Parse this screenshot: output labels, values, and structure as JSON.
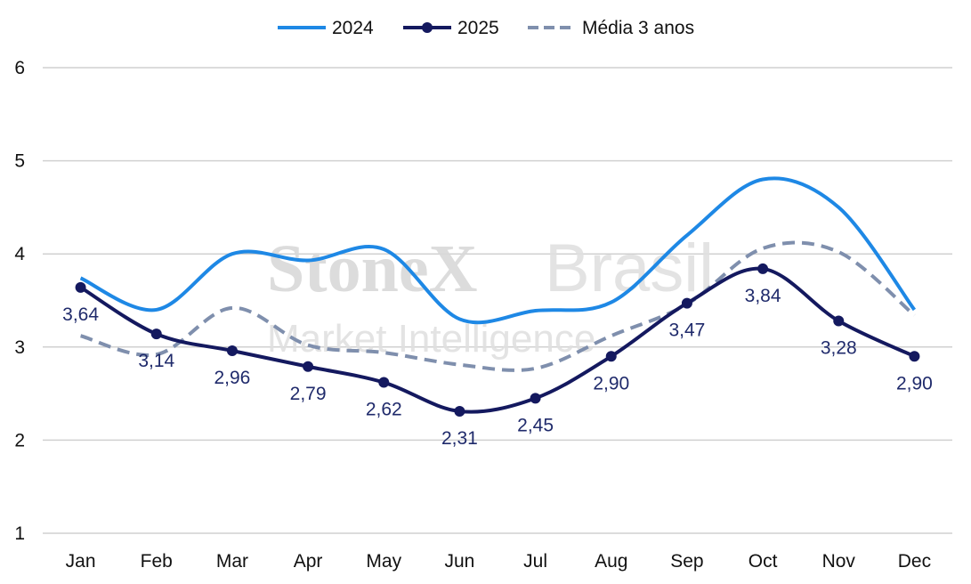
{
  "chart_data": {
    "type": "line",
    "categories": [
      "Jan",
      "Feb",
      "Mar",
      "Apr",
      "May",
      "Jun",
      "Jul",
      "Aug",
      "Sep",
      "Oct",
      "Nov",
      "Dec"
    ],
    "series": [
      {
        "name": "2024",
        "values": [
          3.74,
          3.4,
          4.0,
          3.93,
          4.05,
          3.3,
          3.39,
          3.48,
          4.2,
          4.8,
          4.5,
          3.4
        ],
        "color": "#1e88e5",
        "style": "solid",
        "markers": false,
        "data_labels": false
      },
      {
        "name": "2025",
        "values": [
          3.64,
          3.14,
          2.96,
          2.79,
          2.62,
          2.31,
          2.45,
          2.9,
          3.47,
          3.84,
          3.28,
          2.9
        ],
        "color": "#14195f",
        "style": "solid",
        "markers": true,
        "data_labels": true
      },
      {
        "name": "Média 3 anos",
        "values": [
          3.12,
          2.92,
          3.42,
          3.02,
          2.94,
          2.81,
          2.77,
          3.12,
          3.46,
          4.06,
          4.02,
          3.34
        ],
        "color": "#7f8fad",
        "style": "dashed",
        "markers": false,
        "data_labels": false
      }
    ],
    "data_labels_2025": [
      "3,64",
      "3,14",
      "2,96",
      "2,79",
      "2,62",
      "2,31",
      "2,45",
      "2,90",
      "3,47",
      "3,84",
      "3,28",
      "2,90"
    ],
    "yticks": [
      "1",
      "2",
      "3",
      "4",
      "5",
      "6"
    ],
    "ylim": [
      1,
      6
    ],
    "grid": true,
    "legend": "top-center",
    "title": "",
    "xlabel": "",
    "ylabel": ""
  },
  "watermark": {
    "brand": "StoneX",
    "suffix": "Brasil",
    "tagline": "Market Intelligence"
  }
}
